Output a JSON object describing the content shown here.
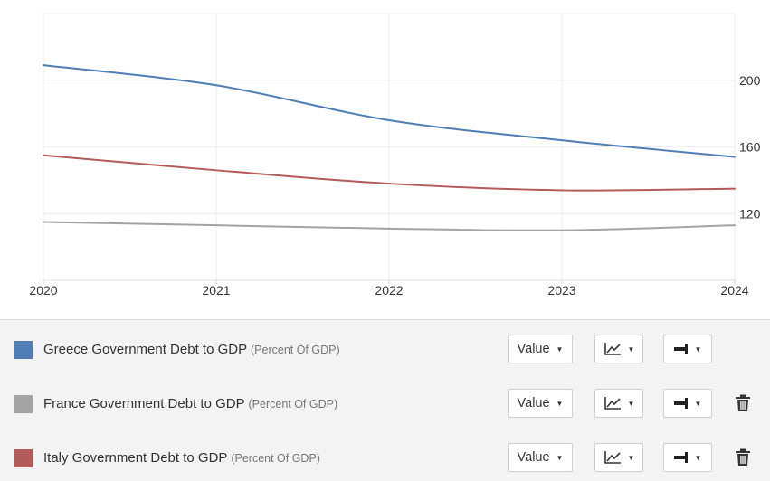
{
  "chart_data": {
    "type": "line",
    "x": [
      2020,
      2021,
      2022,
      2023,
      2024
    ],
    "x_tick_labels": [
      "2020",
      "2021",
      "2022",
      "2023",
      "2024"
    ],
    "y_tick_labels": [
      "120",
      "160",
      "200"
    ],
    "y_ticks": [
      120,
      160,
      200
    ],
    "ylim": [
      80,
      240
    ],
    "y_axis_side": "right",
    "grid": true,
    "series": [
      {
        "name": "Greece Government Debt to GDP",
        "color": "#4f7db6",
        "values": [
          209,
          197,
          176,
          164,
          154
        ]
      },
      {
        "name": "France Government Debt to GDP",
        "color": "#a3a3a3",
        "values": [
          115,
          113,
          111,
          110,
          113
        ]
      },
      {
        "name": "Italy Government Debt to GDP",
        "color": "#b35b58",
        "values": [
          155,
          146,
          138,
          134,
          135
        ]
      }
    ]
  },
  "legend": {
    "rows": [
      {
        "label": "Greece Government Debt to GDP",
        "unit": "(Percent Of GDP)",
        "color": "#4f7db6",
        "value_label": "Value",
        "chart_type_icon": "line-chart-icon",
        "axis_icon": "axis-right-icon",
        "deletable": false
      },
      {
        "label": "France Government Debt to GDP",
        "unit": "(Percent Of GDP)",
        "color": "#a3a3a3",
        "value_label": "Value",
        "chart_type_icon": "line-chart-icon",
        "axis_icon": "axis-right-icon",
        "deletable": true
      },
      {
        "label": "Italy Government Debt to GDP",
        "unit": "(Percent Of GDP)",
        "color": "#b35b58",
        "value_label": "Value",
        "chart_type_icon": "line-chart-icon",
        "axis_icon": "axis-right-icon",
        "deletable": true
      }
    ]
  }
}
